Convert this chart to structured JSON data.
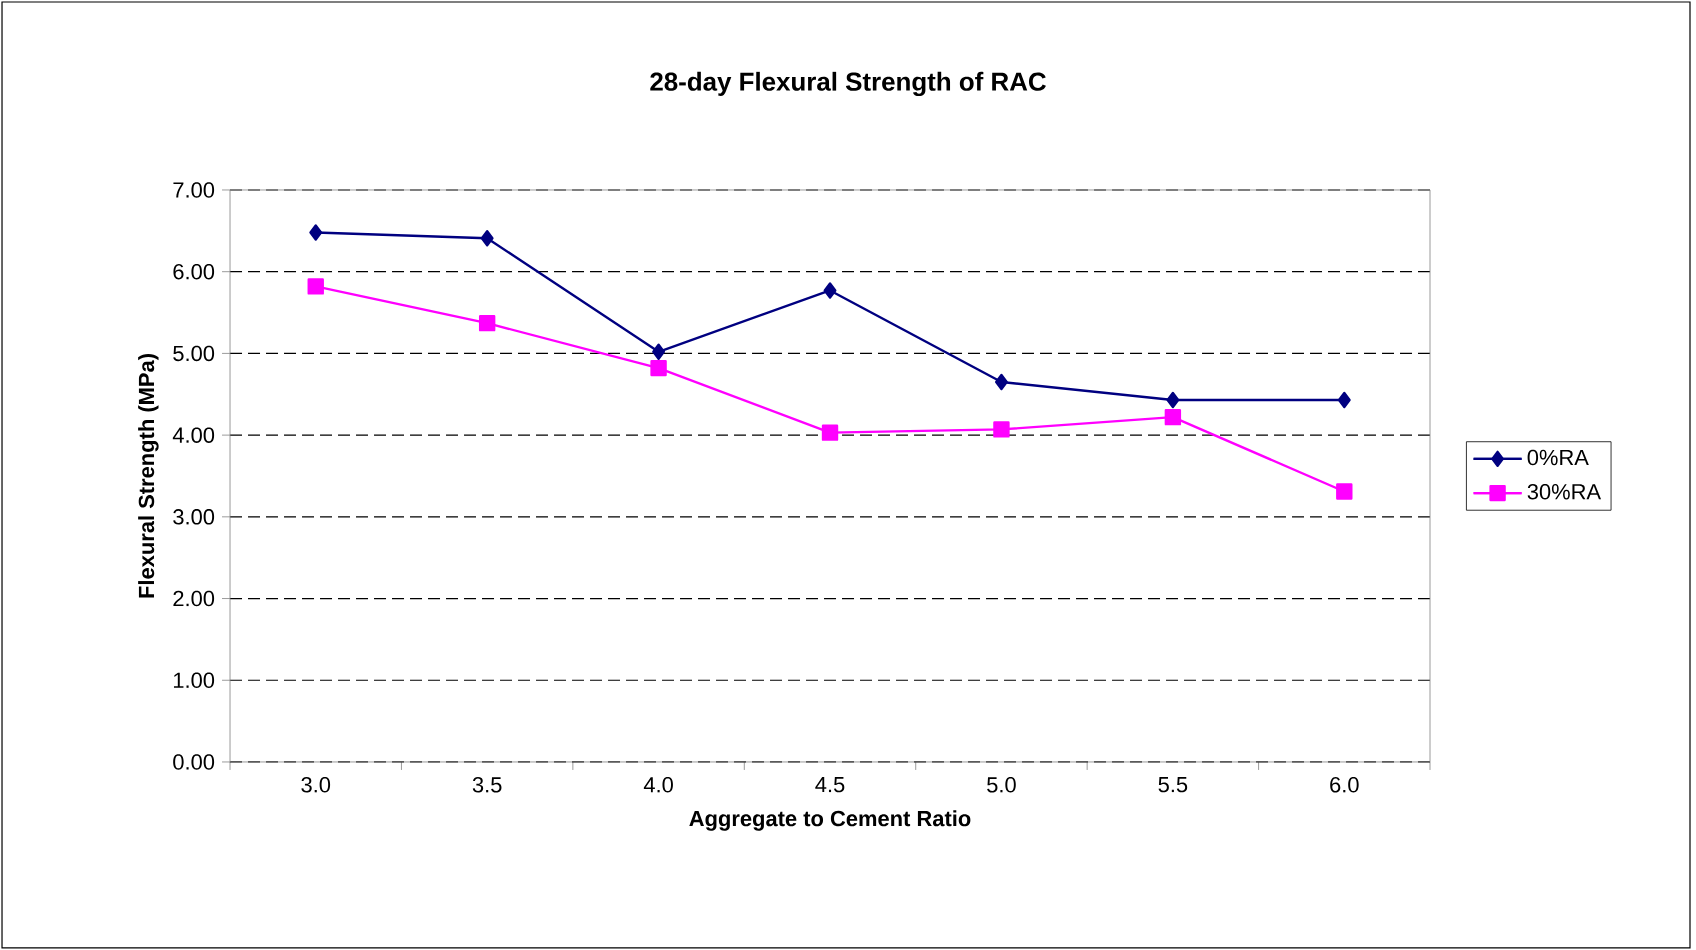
{
  "chart_data": {
    "type": "line",
    "title": "28-day Flexural Strength of RAC",
    "xlabel": "Aggregate to Cement Ratio",
    "ylabel": "Flexural Strength (MPa)",
    "categories": [
      "3.0",
      "3.5",
      "4.0",
      "4.5",
      "5.0",
      "5.5",
      "6.0"
    ],
    "series": [
      {
        "name": "0%RA",
        "color": "#000080",
        "marker": "diamond",
        "values": [
          6.48,
          6.41,
          5.02,
          5.77,
          4.65,
          4.43,
          4.43
        ]
      },
      {
        "name": "30%RA",
        "color": "#ff00ff",
        "marker": "square",
        "values": [
          5.82,
          5.37,
          4.82,
          4.03,
          4.07,
          4.22,
          3.31
        ]
      }
    ],
    "ylim": [
      0,
      7
    ],
    "yticks": [
      {
        "value": 0,
        "label": "0.00"
      },
      {
        "value": 1,
        "label": "1.00"
      },
      {
        "value": 2,
        "label": "2.00"
      },
      {
        "value": 3,
        "label": "3.00"
      },
      {
        "value": 4,
        "label": "4.00"
      },
      {
        "value": 5,
        "label": "5.00"
      },
      {
        "value": 6,
        "label": "6.00"
      },
      {
        "value": 7,
        "label": "7.00"
      }
    ],
    "grid": "y",
    "legend": "right",
    "line_style": "solid"
  }
}
